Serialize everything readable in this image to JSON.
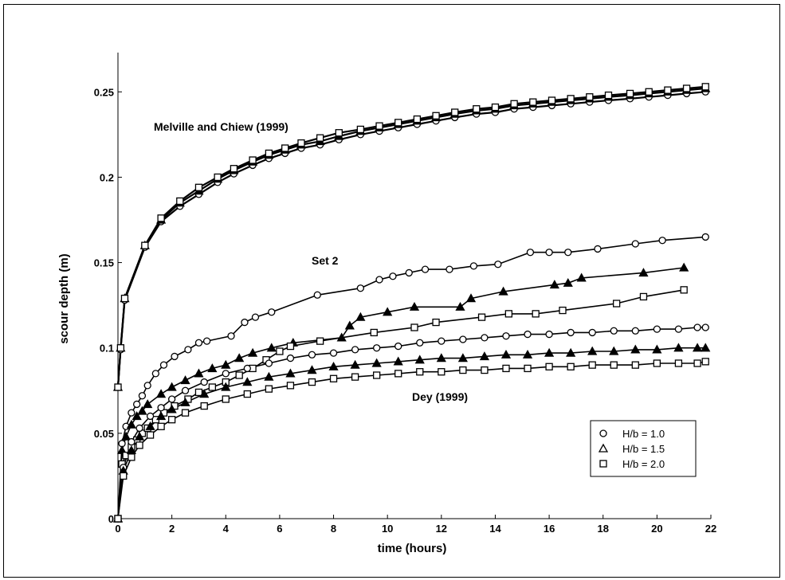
{
  "chart_data": {
    "type": "line",
    "xlabel": "time (hours)",
    "ylabel": "scour depth (m)",
    "xlim": [
      0,
      22
    ],
    "ylim": [
      0,
      0.25
    ],
    "x_ticks": [
      "0",
      "2",
      "4",
      "6",
      "8",
      "10",
      "12",
      "14",
      "16",
      "18",
      "20",
      "22"
    ],
    "y_ticks": [
      "0",
      "0.05",
      "0.1",
      "0.15",
      "0.2",
      "0.25"
    ],
    "grid": false,
    "legend_position": "bottom-right",
    "annotations": [
      "Melville and Chiew (1999)",
      "Set 2",
      "Dey (1999)"
    ],
    "legend": [
      {
        "marker": "circle",
        "label": "H/b = 1.0"
      },
      {
        "marker": "triangle",
        "label": "H/b = 1.5"
      },
      {
        "marker": "square",
        "label": "H/b = 2.0"
      }
    ],
    "series": [
      {
        "group": "Melville and Chiew (1999)",
        "marker": "circle",
        "filled": false,
        "x": [
          0,
          0.1,
          0.25,
          1,
          1.6,
          2.3,
          3,
          3.7,
          4.3,
          5,
          5.6,
          6.2,
          6.8,
          7.5,
          8.2,
          9,
          9.7,
          10.4,
          11.1,
          11.8,
          12.5,
          13.3,
          14,
          14.7,
          15.4,
          16.1,
          16.8,
          17.5,
          18.2,
          19,
          19.7,
          20.4,
          21.1,
          21.8
        ],
        "y": [
          0.077,
          0.099,
          0.128,
          0.159,
          0.174,
          0.183,
          0.19,
          0.197,
          0.202,
          0.207,
          0.211,
          0.214,
          0.217,
          0.219,
          0.222,
          0.225,
          0.227,
          0.229,
          0.231,
          0.233,
          0.235,
          0.237,
          0.238,
          0.24,
          0.241,
          0.242,
          0.243,
          0.244,
          0.245,
          0.246,
          0.247,
          0.248,
          0.249,
          0.25
        ]
      },
      {
        "group": "Melville and Chiew (1999)",
        "marker": "triangle",
        "filled": true,
        "x": [
          0,
          0.1,
          0.25,
          1,
          1.6,
          2.3,
          3,
          3.7,
          4.3,
          5,
          5.6,
          6.2,
          6.8,
          7.5,
          8.2,
          9,
          9.7,
          10.4,
          11.1,
          11.8,
          12.5,
          13.3,
          14,
          14.7,
          15.4,
          16.1,
          16.8,
          17.5,
          18.2,
          19,
          19.7,
          20.4,
          21.1,
          21.8
        ],
        "y": [
          0.077,
          0.1,
          0.129,
          0.16,
          0.175,
          0.185,
          0.192,
          0.199,
          0.204,
          0.209,
          0.213,
          0.216,
          0.219,
          0.221,
          0.224,
          0.227,
          0.229,
          0.231,
          0.233,
          0.235,
          0.237,
          0.239,
          0.24,
          0.242,
          0.243,
          0.244,
          0.245,
          0.246,
          0.247,
          0.248,
          0.249,
          0.25,
          0.251,
          0.252
        ]
      },
      {
        "group": "Melville and Chiew (1999)",
        "marker": "square",
        "filled": false,
        "x": [
          0,
          0.1,
          0.25,
          1,
          1.6,
          2.3,
          3,
          3.7,
          4.3,
          5,
          5.6,
          6.2,
          6.8,
          7.5,
          8.2,
          9,
          9.7,
          10.4,
          11.1,
          11.8,
          12.5,
          13.3,
          14,
          14.7,
          15.4,
          16.1,
          16.8,
          17.5,
          18.2,
          19,
          19.7,
          20.4,
          21.1,
          21.8
        ],
        "y": [
          0.077,
          0.1,
          0.129,
          0.16,
          0.176,
          0.186,
          0.194,
          0.2,
          0.205,
          0.21,
          0.214,
          0.217,
          0.22,
          0.223,
          0.226,
          0.228,
          0.23,
          0.232,
          0.234,
          0.236,
          0.238,
          0.24,
          0.241,
          0.243,
          0.244,
          0.245,
          0.246,
          0.247,
          0.248,
          0.249,
          0.25,
          0.251,
          0.252,
          0.253
        ]
      },
      {
        "group": "Set 2",
        "marker": "circle",
        "filled": false,
        "x": [
          0,
          0.15,
          0.3,
          0.5,
          0.7,
          0.9,
          1.1,
          1.4,
          1.7,
          2.1,
          2.6,
          3,
          3.3,
          4.2,
          4.7,
          5.1,
          5.7,
          7.4,
          9,
          9.7,
          10.2,
          10.8,
          11.4,
          12.3,
          13.2,
          14.1,
          15.3,
          16,
          16.7,
          17.8,
          19.2,
          20.2,
          21.8
        ],
        "y": [
          0,
          0.044,
          0.054,
          0.062,
          0.067,
          0.072,
          0.078,
          0.085,
          0.09,
          0.095,
          0.099,
          0.103,
          0.104,
          0.107,
          0.115,
          0.118,
          0.121,
          0.131,
          0.135,
          0.14,
          0.142,
          0.144,
          0.146,
          0.146,
          0.148,
          0.149,
          0.156,
          0.156,
          0.156,
          0.158,
          0.161,
          0.163,
          0.165
        ]
      },
      {
        "group": "Set 2",
        "marker": "triangle",
        "filled": true,
        "x": [
          0,
          0.15,
          0.3,
          0.5,
          0.7,
          0.9,
          1.1,
          1.6,
          2,
          2.5,
          3,
          3.5,
          4,
          4.5,
          5,
          5.7,
          6.5,
          8.3,
          8.6,
          9,
          10,
          11,
          12.7,
          13.1,
          14.3,
          16.2,
          16.7,
          17.2,
          19.5,
          21
        ],
        "y": [
          0,
          0.04,
          0.048,
          0.055,
          0.06,
          0.063,
          0.067,
          0.073,
          0.077,
          0.081,
          0.085,
          0.088,
          0.09,
          0.094,
          0.097,
          0.1,
          0.103,
          0.106,
          0.113,
          0.118,
          0.121,
          0.124,
          0.124,
          0.129,
          0.133,
          0.137,
          0.138,
          0.141,
          0.144,
          0.147
        ]
      },
      {
        "group": "Set 2",
        "marker": "square",
        "filled": false,
        "x": [
          0,
          0.15,
          0.3,
          0.5,
          0.7,
          0.9,
          1.1,
          1.4,
          1.7,
          2.1,
          2.6,
          3,
          3.5,
          4,
          4.5,
          5,
          5.5,
          6,
          6.4,
          7.5,
          9.5,
          11,
          11.8,
          13.5,
          14.5,
          15.5,
          16.5,
          18.5,
          19.5,
          21
        ],
        "y": [
          0,
          0.032,
          0.037,
          0.042,
          0.046,
          0.05,
          0.053,
          0.058,
          0.062,
          0.066,
          0.07,
          0.074,
          0.077,
          0.08,
          0.084,
          0.088,
          0.093,
          0.098,
          0.101,
          0.104,
          0.109,
          0.112,
          0.115,
          0.118,
          0.12,
          0.12,
          0.122,
          0.126,
          0.13,
          0.134
        ]
      },
      {
        "group": "Dey (1999)",
        "marker": "circle",
        "filled": false,
        "x": [
          0,
          0.2,
          0.5,
          0.8,
          1.2,
          1.6,
          2,
          2.5,
          3.2,
          4,
          4.8,
          5.6,
          6.4,
          7.2,
          8,
          8.8,
          9.6,
          10.4,
          11.2,
          12,
          12.8,
          13.6,
          14.4,
          15.2,
          16,
          16.8,
          17.6,
          18.4,
          19.2,
          20,
          20.8,
          21.5,
          21.8
        ],
        "y": [
          0,
          0.03,
          0.045,
          0.053,
          0.06,
          0.065,
          0.07,
          0.075,
          0.08,
          0.085,
          0.088,
          0.091,
          0.094,
          0.096,
          0.097,
          0.099,
          0.1,
          0.101,
          0.103,
          0.104,
          0.105,
          0.106,
          0.107,
          0.108,
          0.108,
          0.109,
          0.109,
          0.11,
          0.11,
          0.111,
          0.111,
          0.112,
          0.112
        ]
      },
      {
        "group": "Dey (1999)",
        "marker": "triangle",
        "filled": true,
        "x": [
          0,
          0.2,
          0.5,
          0.8,
          1.2,
          1.6,
          2,
          2.5,
          3.2,
          4,
          4.8,
          5.6,
          6.4,
          7.2,
          8,
          8.8,
          9.6,
          10.4,
          11.2,
          12,
          12.8,
          13.6,
          14.4,
          15.2,
          16,
          16.8,
          17.6,
          18.4,
          19.2,
          20,
          20.8,
          21.5,
          21.8
        ],
        "y": [
          0,
          0.028,
          0.04,
          0.048,
          0.054,
          0.06,
          0.064,
          0.068,
          0.073,
          0.077,
          0.08,
          0.083,
          0.085,
          0.087,
          0.089,
          0.09,
          0.091,
          0.092,
          0.093,
          0.094,
          0.094,
          0.095,
          0.096,
          0.096,
          0.097,
          0.097,
          0.098,
          0.098,
          0.099,
          0.099,
          0.1,
          0.1,
          0.1
        ]
      },
      {
        "group": "Dey (1999)",
        "marker": "square",
        "filled": false,
        "x": [
          0,
          0.2,
          0.5,
          0.8,
          1.2,
          1.6,
          2,
          2.5,
          3.2,
          4,
          4.8,
          5.6,
          6.4,
          7.2,
          8,
          8.8,
          9.6,
          10.4,
          11.2,
          12,
          12.8,
          13.6,
          14.4,
          15.2,
          16,
          16.8,
          17.6,
          18.4,
          19.2,
          20,
          20.8,
          21.5,
          21.8
        ],
        "y": [
          0,
          0.025,
          0.036,
          0.043,
          0.049,
          0.054,
          0.058,
          0.062,
          0.066,
          0.07,
          0.073,
          0.076,
          0.078,
          0.08,
          0.082,
          0.083,
          0.084,
          0.085,
          0.086,
          0.086,
          0.087,
          0.087,
          0.088,
          0.088,
          0.089,
          0.089,
          0.09,
          0.09,
          0.09,
          0.091,
          0.091,
          0.091,
          0.092
        ]
      }
    ]
  }
}
